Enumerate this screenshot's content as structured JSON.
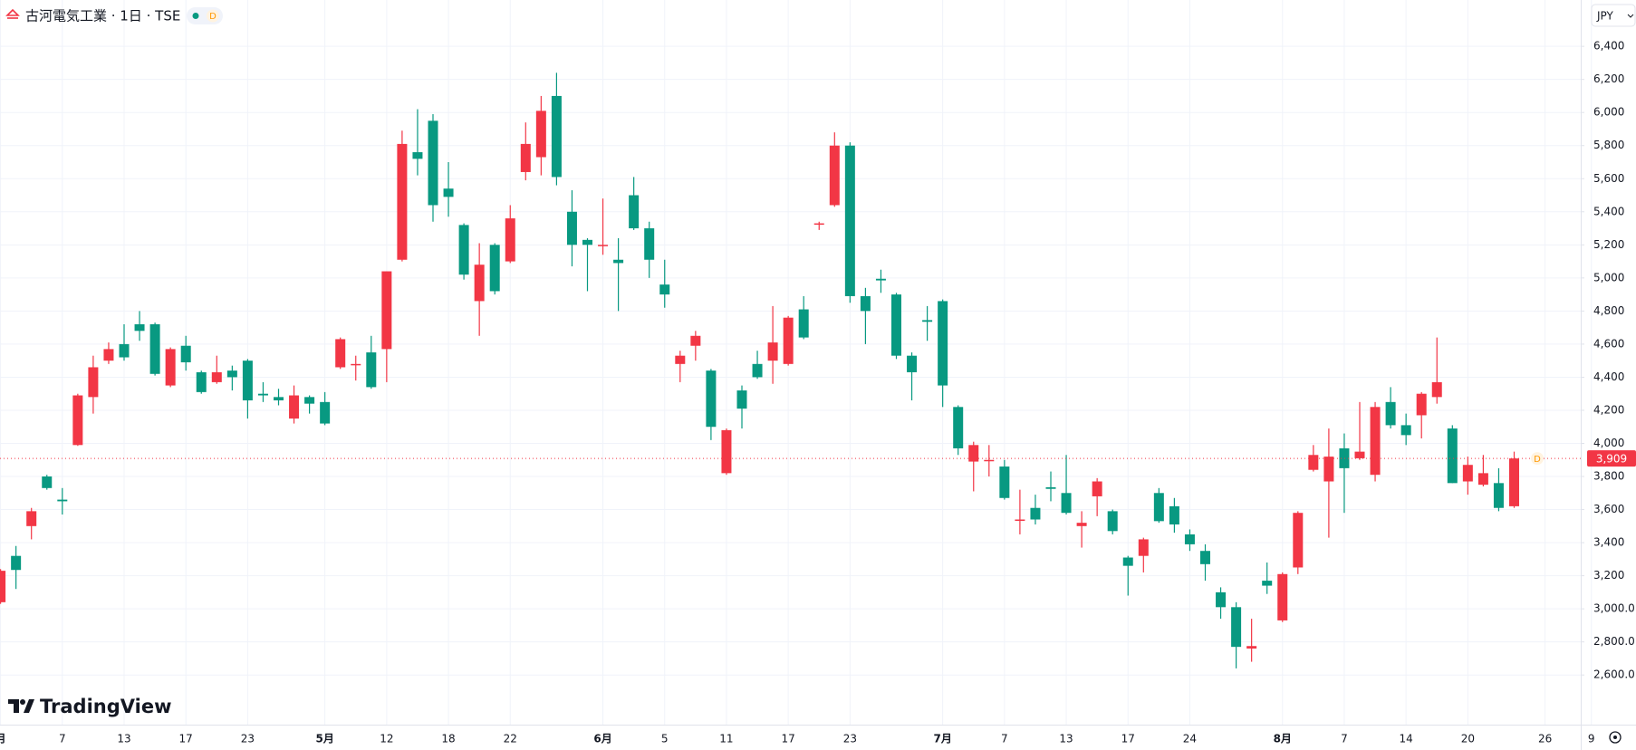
{
  "header": {
    "title": "古河電気工業 · 1日 · TSE",
    "interval_badge": "D",
    "currency": "JPY",
    "logo": "TradingView"
  },
  "chart_data": {
    "type": "candlestick",
    "up_color": "#f23645",
    "down_color": "#089981",
    "grid": true,
    "ylim": [
      2300,
      6680
    ],
    "yticks": [
      {
        "value": 6400,
        "label": "6,400"
      },
      {
        "value": 6200,
        "label": "6,200"
      },
      {
        "value": 6000,
        "label": "6,000"
      },
      {
        "value": 5800,
        "label": "5,800"
      },
      {
        "value": 5600,
        "label": "5,600"
      },
      {
        "value": 5400,
        "label": "5,400"
      },
      {
        "value": 5200,
        "label": "5,200"
      },
      {
        "value": 5000,
        "label": "5,000"
      },
      {
        "value": 4800,
        "label": "4,800"
      },
      {
        "value": 4600,
        "label": "4,600"
      },
      {
        "value": 4400,
        "label": "4,400"
      },
      {
        "value": 4200,
        "label": "4,200"
      },
      {
        "value": 4000,
        "label": "4,000"
      },
      {
        "value": 3800,
        "label": "3,800"
      },
      {
        "value": 3600,
        "label": "3,600"
      },
      {
        "value": 3400,
        "label": "3,400"
      },
      {
        "value": 3200,
        "label": "3,200"
      },
      {
        "value": 3000,
        "label": "3,000.0"
      },
      {
        "value": 2800,
        "label": "2,800.0"
      },
      {
        "value": 2600,
        "label": "2,600.0"
      }
    ],
    "last_price": {
      "value": 3909,
      "label": "3,909"
    },
    "marker": "D",
    "categories": [
      "月",
      null,
      null,
      null,
      "7",
      null,
      null,
      null,
      "13",
      null,
      null,
      null,
      "17",
      null,
      null,
      null,
      "23",
      null,
      null,
      null,
      null,
      "5月",
      null,
      null,
      null,
      "12",
      null,
      null,
      null,
      "18",
      null,
      null,
      null,
      "22",
      null,
      null,
      null,
      null,
      null,
      "6月",
      null,
      null,
      null,
      "5",
      null,
      null,
      null,
      "11",
      null,
      null,
      null,
      "17",
      null,
      null,
      null,
      "23",
      null,
      null,
      null,
      null,
      null,
      "7月",
      null,
      null,
      null,
      "7",
      null,
      null,
      null,
      "13",
      null,
      null,
      null,
      "17",
      null,
      null,
      null,
      "24",
      null,
      null,
      null,
      null,
      null,
      "8月",
      null,
      null,
      null,
      "7",
      null,
      null,
      null,
      "14",
      null,
      null,
      null,
      "20",
      null,
      null,
      null,
      null,
      "26",
      null,
      null,
      "9"
    ],
    "open": [
      3040,
      3320,
      3500,
      3800,
      3660,
      3990,
      4280,
      4500,
      4600,
      4720,
      4720,
      4350,
      4590,
      4430,
      4370,
      4440,
      4500,
      4300,
      4280,
      4150,
      4280,
      4250,
      4460,
      4475,
      4550,
      4570,
      5110,
      5760,
      5950,
      5540,
      5320,
      4860,
      5200,
      5100,
      5640,
      5730,
      6100,
      5400,
      5230,
      5195,
      5110,
      5500,
      5300,
      4960,
      4480,
      4590,
      4440,
      3820,
      4320,
      4480,
      4500,
      4480,
      4810,
      5325,
      5440,
      5800,
      4890,
      4995,
      4900,
      4530,
      4745,
      4860,
      4220,
      3890,
      3895,
      3860,
      3535,
      3610,
      3735,
      3700,
      3500,
      3680,
      3590,
      3310,
      3320,
      3700,
      3620,
      3450,
      3350,
      3100,
      3010,
      2760,
      3170,
      2930,
      3250,
      3840,
      3770,
      3970,
      3910,
      3810,
      4250,
      4110,
      4170,
      4280,
      4090,
      3770,
      3750,
      3760,
      3620,
      null,
      null,
      null,
      null,
      null
    ],
    "high": [
      3240,
      3380,
      3610,
      3810,
      3730,
      4300,
      4530,
      4610,
      4720,
      4800,
      4730,
      4580,
      4650,
      4440,
      4530,
      4470,
      4510,
      4370,
      4330,
      4350,
      4290,
      4310,
      4640,
      4530,
      4650,
      5040,
      5890,
      6020,
      5990,
      5700,
      5330,
      5210,
      5210,
      5440,
      5940,
      6100,
      6240,
      5530,
      5240,
      5480,
      5240,
      5610,
      5340,
      5110,
      4560,
      4680,
      4450,
      4090,
      4350,
      4560,
      4830,
      4770,
      4890,
      5340,
      5880,
      5820,
      4940,
      5050,
      4910,
      4550,
      4830,
      4870,
      4230,
      4010,
      3990,
      3900,
      3720,
      3690,
      3830,
      3930,
      3590,
      3790,
      3600,
      3320,
      3430,
      3730,
      3670,
      3480,
      3390,
      3130,
      3040,
      2940,
      3280,
      3220,
      3590,
      3990,
      4090,
      4060,
      4250,
      4250,
      4340,
      4180,
      4310,
      4640,
      4110,
      3920,
      3930,
      3850,
      3950,
      null,
      null,
      null,
      null,
      null
    ],
    "low": [
      3030,
      3120,
      3420,
      3720,
      3570,
      3985,
      4180,
      4480,
      4500,
      4620,
      4410,
      4340,
      4440,
      4300,
      4360,
      4320,
      4150,
      4250,
      4230,
      4120,
      4180,
      4110,
      4450,
      4380,
      4330,
      4370,
      5100,
      5620,
      5340,
      5370,
      4990,
      4650,
      4900,
      5090,
      5590,
      5620,
      5560,
      5070,
      4920,
      5140,
      4800,
      5290,
      5000,
      4820,
      4370,
      4500,
      4020,
      3810,
      4090,
      4390,
      4360,
      4470,
      4630,
      5290,
      5430,
      4850,
      4600,
      4910,
      4510,
      4260,
      4620,
      4220,
      3930,
      3710,
      3800,
      3660,
      3450,
      3510,
      3650,
      3570,
      3370,
      3560,
      3450,
      3080,
      3220,
      3520,
      3460,
      3350,
      3170,
      2940,
      2640,
      2680,
      3090,
      2920,
      3210,
      3830,
      3430,
      3580,
      3900,
      3770,
      4090,
      3990,
      4030,
      4240,
      3760,
      3690,
      3740,
      3590,
      3610,
      null,
      null,
      null,
      null,
      null
    ],
    "close": [
      3230,
      3235,
      3590,
      3730,
      3650,
      4290,
      4460,
      4570,
      4520,
      4680,
      4420,
      4570,
      4490,
      4310,
      4430,
      4400,
      4260,
      4290,
      4260,
      4290,
      4240,
      4120,
      4630,
      4480,
      4340,
      5040,
      5810,
      5720,
      5440,
      5490,
      5020,
      5080,
      4920,
      5360,
      5810,
      6010,
      5610,
      5200,
      5200,
      5200,
      5090,
      5300,
      5110,
      4900,
      4530,
      4650,
      4100,
      4080,
      4210,
      4400,
      4610,
      4760,
      4640,
      5330,
      5800,
      4890,
      4800,
      4985,
      4530,
      4430,
      4735,
      4350,
      3970,
      3990,
      3900,
      3670,
      3540,
      3540,
      3725,
      3580,
      3520,
      3770,
      3470,
      3260,
      3420,
      3530,
      3510,
      3390,
      3270,
      3010,
      2770,
      2775,
      3140,
      3210,
      3580,
      3930,
      3920,
      3850,
      3950,
      4220,
      4110,
      4050,
      4300,
      4370,
      3760,
      3870,
      3820,
      3610,
      3909,
      null,
      null,
      null,
      null,
      null
    ]
  }
}
